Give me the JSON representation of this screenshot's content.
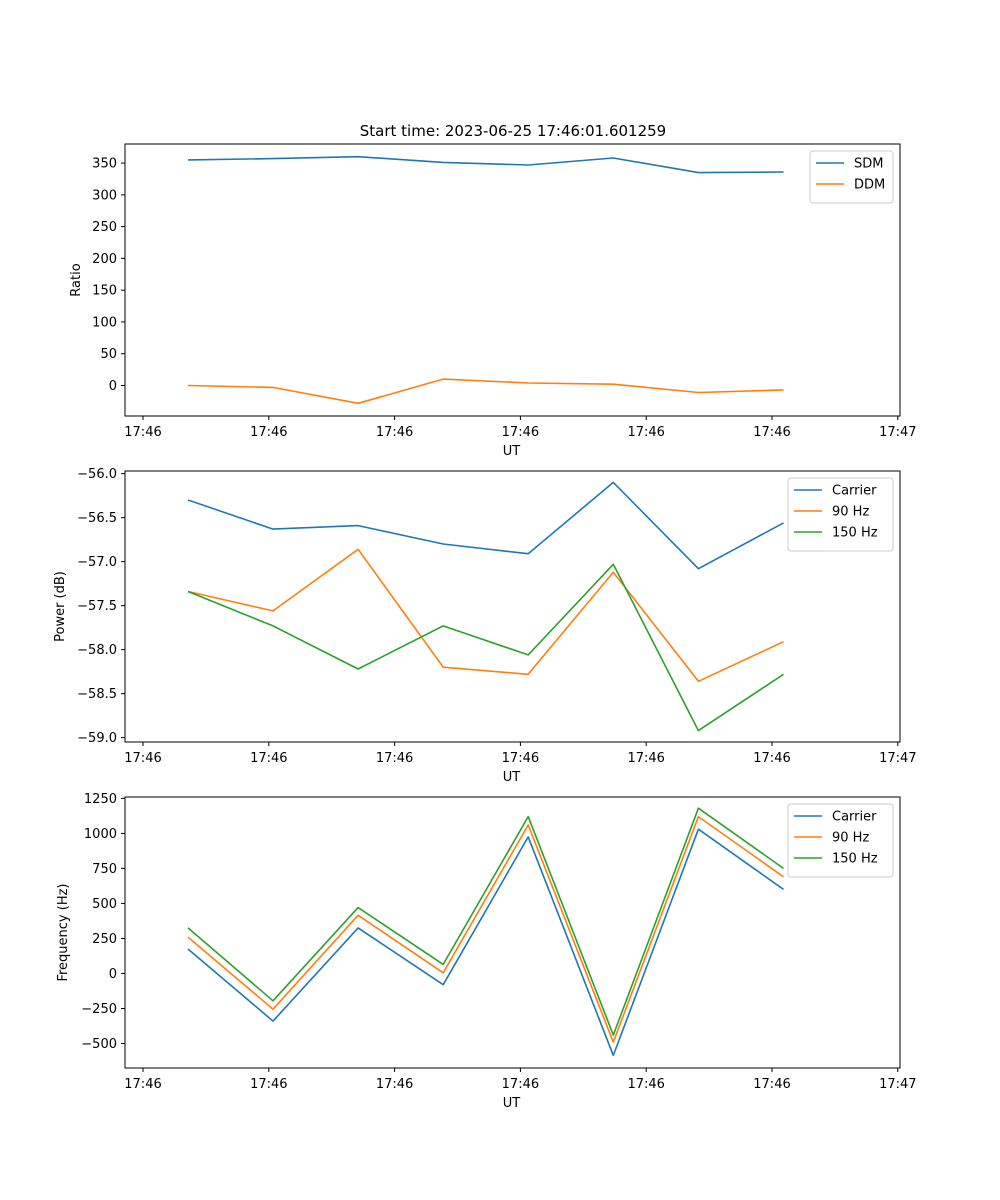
{
  "figure": {
    "title": "Start time: 2023-06-25 17:46:01.601259"
  },
  "chart_data": [
    {
      "type": "line",
      "xlabel": "UT",
      "ylabel": "Ratio",
      "x": [
        1,
        2,
        3,
        4,
        5,
        6,
        7,
        8
      ],
      "x_tick_labels": [
        "17:46",
        "17:46",
        "17:46",
        "17:46",
        "17:46",
        "17:46",
        "17:47"
      ],
      "ylim": [
        -48,
        380
      ],
      "yticks": [
        0,
        50,
        100,
        150,
        200,
        250,
        300,
        350
      ],
      "grid": false,
      "legend_position": "top-right",
      "series": [
        {
          "name": "SDM",
          "color": "#1f77b4",
          "values": [
            355,
            357,
            360,
            351,
            347,
            358,
            335,
            336
          ]
        },
        {
          "name": "DDM",
          "color": "#ff7f0e",
          "values": [
            0,
            -3,
            -28,
            10,
            4,
            2,
            -11,
            -7
          ]
        }
      ]
    },
    {
      "type": "line",
      "xlabel": "UT",
      "ylabel": "Power (dB)",
      "x": [
        1,
        2,
        3,
        4,
        5,
        6,
        7,
        8
      ],
      "x_tick_labels": [
        "17:46",
        "17:46",
        "17:46",
        "17:46",
        "17:46",
        "17:46",
        "17:47"
      ],
      "ylim": [
        -59.05,
        -55.97
      ],
      "yticks": [
        -59.0,
        -58.5,
        -58.0,
        -57.5,
        -57.0,
        -56.5,
        -56.0
      ],
      "ytick_labels": [
        "−59.0",
        "−58.5",
        "−58.0",
        "−57.5",
        "−57.0",
        "−56.5",
        "−56.0"
      ],
      "grid": false,
      "legend_position": "top-right",
      "series": [
        {
          "name": "Carrier",
          "color": "#1f77b4",
          "values": [
            -56.3,
            -56.63,
            -56.59,
            -56.8,
            -56.91,
            -56.1,
            -57.08,
            -56.56
          ]
        },
        {
          "name": "90 Hz",
          "color": "#ff7f0e",
          "values": [
            -57.34,
            -57.56,
            -56.86,
            -58.2,
            -58.28,
            -57.12,
            -58.36,
            -57.91
          ]
        },
        {
          "name": "150 Hz",
          "color": "#2ca02c",
          "values": [
            -57.34,
            -57.73,
            -58.22,
            -57.73,
            -58.06,
            -57.03,
            -58.92,
            -58.28
          ]
        }
      ]
    },
    {
      "type": "line",
      "xlabel": "UT",
      "ylabel": "Frequency (Hz)",
      "x": [
        1,
        2,
        3,
        4,
        5,
        6,
        7,
        8
      ],
      "x_tick_labels": [
        "17:46",
        "17:46",
        "17:46",
        "17:46",
        "17:46",
        "17:46",
        "17:47"
      ],
      "ylim": [
        -675,
        1260
      ],
      "yticks": [
        -500,
        -250,
        0,
        250,
        500,
        750,
        1000,
        1250
      ],
      "ytick_labels": [
        "−500",
        "−250",
        "0",
        "250",
        "500",
        "750",
        "1000",
        "1250"
      ],
      "grid": false,
      "legend_position": "top-right",
      "series": [
        {
          "name": "Carrier",
          "color": "#1f77b4",
          "values": [
            175,
            -340,
            325,
            -80,
            975,
            -585,
            1030,
            600
          ]
        },
        {
          "name": "90 Hz",
          "color": "#ff7f0e",
          "values": [
            260,
            -255,
            415,
            5,
            1060,
            -490,
            1120,
            690
          ]
        },
        {
          "name": "150 Hz",
          "color": "#2ca02c",
          "values": [
            325,
            -195,
            470,
            65,
            1120,
            -440,
            1180,
            750
          ]
        }
      ]
    }
  ]
}
